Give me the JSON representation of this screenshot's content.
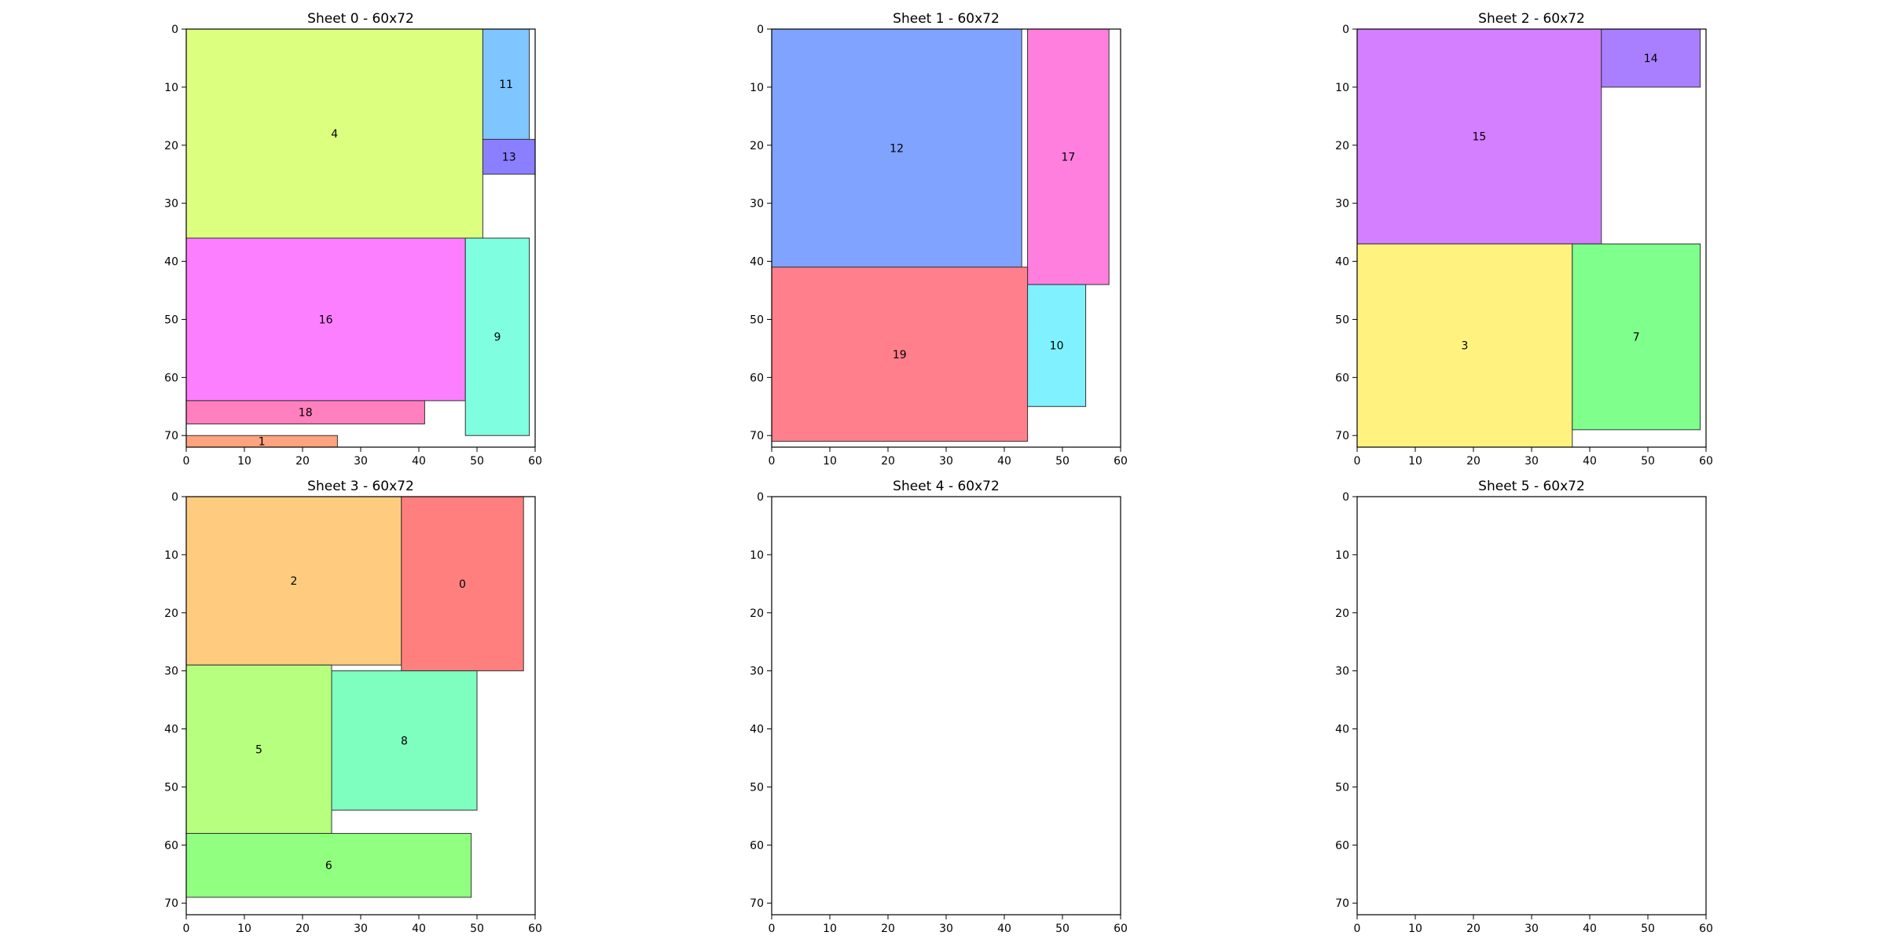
{
  "chart_data": [
    {
      "type": "packing",
      "title": "Sheet 0 - 60x72",
      "xlim": [
        0,
        60
      ],
      "ylim": [
        72,
        0
      ],
      "xticks": [
        0,
        10,
        20,
        30,
        40,
        50,
        60
      ],
      "yticks": [
        0,
        10,
        20,
        30,
        40,
        50,
        60,
        70
      ],
      "pieces": [
        {
          "id": "4",
          "x": 0,
          "y": 0,
          "w": 51,
          "h": 36,
          "color": "#ddff7f"
        },
        {
          "id": "11",
          "x": 51,
          "y": 0,
          "w": 8,
          "h": 19,
          "color": "#7fc5ff"
        },
        {
          "id": "13",
          "x": 51,
          "y": 19,
          "w": 9,
          "h": 6,
          "color": "#8c7fff"
        },
        {
          "id": "16",
          "x": 0,
          "y": 36,
          "w": 48,
          "h": 28,
          "color": "#fb7fff"
        },
        {
          "id": "9",
          "x": 48,
          "y": 36,
          "w": 11,
          "h": 34,
          "color": "#7fffdf"
        },
        {
          "id": "18",
          "x": 0,
          "y": 64,
          "w": 41,
          "h": 4,
          "color": "#ff7fbf"
        },
        {
          "id": "1",
          "x": 0,
          "y": 70,
          "w": 26,
          "h": 2,
          "color": "#ffa37f"
        }
      ]
    },
    {
      "type": "packing",
      "title": "Sheet 1 - 60x72",
      "xlim": [
        0,
        60
      ],
      "ylim": [
        72,
        0
      ],
      "xticks": [
        0,
        10,
        20,
        30,
        40,
        50,
        60
      ],
      "yticks": [
        0,
        10,
        20,
        30,
        40,
        50,
        60,
        70
      ],
      "pieces": [
        {
          "id": "12",
          "x": 0,
          "y": 0,
          "w": 43,
          "h": 41,
          "color": "#7fa3ff"
        },
        {
          "id": "17",
          "x": 44,
          "y": 0,
          "w": 14,
          "h": 44,
          "color": "#ff7fdf"
        },
        {
          "id": "19",
          "x": 0,
          "y": 41,
          "w": 44,
          "h": 30,
          "color": "#ff7f8c"
        },
        {
          "id": "10",
          "x": 44,
          "y": 44,
          "w": 10,
          "h": 21,
          "color": "#7ff1ff"
        }
      ]
    },
    {
      "type": "packing",
      "title": "Sheet 2 - 60x72",
      "xlim": [
        0,
        60
      ],
      "ylim": [
        72,
        0
      ],
      "xticks": [
        0,
        10,
        20,
        30,
        40,
        50,
        60
      ],
      "yticks": [
        0,
        10,
        20,
        30,
        40,
        50,
        60,
        70
      ],
      "pieces": [
        {
          "id": "15",
          "x": 0,
          "y": 0,
          "w": 42,
          "h": 37,
          "color": "#d47fff"
        },
        {
          "id": "14",
          "x": 42,
          "y": 0,
          "w": 17,
          "h": 10,
          "color": "#a97fff"
        },
        {
          "id": "3",
          "x": 0,
          "y": 37,
          "w": 37,
          "h": 35,
          "color": "#fff27f"
        },
        {
          "id": "7",
          "x": 37,
          "y": 37,
          "w": 22,
          "h": 32,
          "color": "#7fff8c"
        }
      ]
    },
    {
      "type": "packing",
      "title": "Sheet 3 - 60x72",
      "xlim": [
        0,
        60
      ],
      "ylim": [
        72,
        0
      ],
      "xticks": [
        0,
        10,
        20,
        30,
        40,
        50,
        60
      ],
      "yticks": [
        0,
        10,
        20,
        30,
        40,
        50,
        60,
        70
      ],
      "pieces": [
        {
          "id": "2",
          "x": 0,
          "y": 0,
          "w": 37,
          "h": 29,
          "color": "#ffcc7f"
        },
        {
          "id": "0",
          "x": 37,
          "y": 0,
          "w": 21,
          "h": 30,
          "color": "#ff7f7f"
        },
        {
          "id": "5",
          "x": 0,
          "y": 29,
          "w": 25,
          "h": 29,
          "color": "#b6ff7f"
        },
        {
          "id": "8",
          "x": 25,
          "y": 30,
          "w": 25,
          "h": 24,
          "color": "#7fffbf"
        },
        {
          "id": "6",
          "x": 0,
          "y": 58,
          "w": 49,
          "h": 11,
          "color": "#91ff7f"
        }
      ]
    },
    {
      "type": "packing",
      "title": "Sheet 4 - 60x72",
      "xlim": [
        0,
        60
      ],
      "ylim": [
        72,
        0
      ],
      "xticks": [
        0,
        10,
        20,
        30,
        40,
        50,
        60
      ],
      "yticks": [
        0,
        10,
        20,
        30,
        40,
        50,
        60,
        70
      ],
      "pieces": []
    },
    {
      "type": "packing",
      "title": "Sheet 5 - 60x72",
      "xlim": [
        0,
        60
      ],
      "ylim": [
        72,
        0
      ],
      "xticks": [
        0,
        10,
        20,
        30,
        40,
        50,
        60
      ],
      "yticks": [
        0,
        10,
        20,
        30,
        40,
        50,
        60,
        70
      ],
      "pieces": []
    }
  ]
}
